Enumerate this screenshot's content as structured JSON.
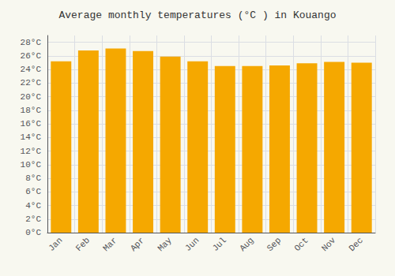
{
  "chart_data": {
    "type": "bar",
    "title": "Average monthly temperatures (°C ) in Kouango",
    "categories": [
      "Jan",
      "Feb",
      "Mar",
      "Apr",
      "May",
      "Jun",
      "Jul",
      "Aug",
      "Sep",
      "Oct",
      "Nov",
      "Dec"
    ],
    "values": [
      25.2,
      26.8,
      27.1,
      26.7,
      25.9,
      25.2,
      24.5,
      24.5,
      24.6,
      24.9,
      25.1,
      25.0
    ],
    "color": "#F5A800",
    "ylim": [
      0,
      29
    ],
    "yticks": [
      {
        "value": 0,
        "label": "0°C"
      },
      {
        "value": 2,
        "label": "2°C"
      },
      {
        "value": 4,
        "label": "4°C"
      },
      {
        "value": 6,
        "label": "6°C"
      },
      {
        "value": 8,
        "label": "8°C"
      },
      {
        "value": 10,
        "label": "10°C"
      },
      {
        "value": 12,
        "label": "12°C"
      },
      {
        "value": 14,
        "label": "14°C"
      },
      {
        "value": 16,
        "label": "16°C"
      },
      {
        "value": 18,
        "label": "18°C"
      },
      {
        "value": 20,
        "label": "20°C"
      },
      {
        "value": 22,
        "label": "22°C"
      },
      {
        "value": 24,
        "label": "24°C"
      },
      {
        "value": 26,
        "label": "26°C"
      },
      {
        "value": 28,
        "label": "28°C"
      }
    ],
    "grid": true
  }
}
